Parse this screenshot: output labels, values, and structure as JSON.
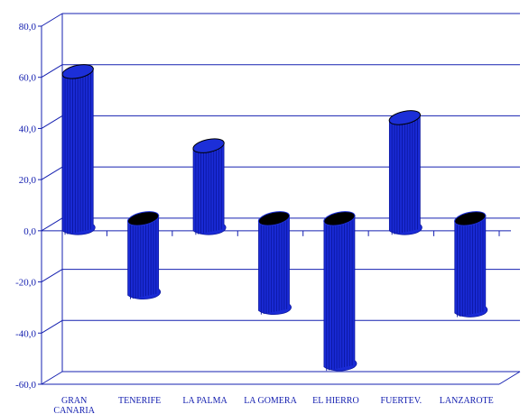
{
  "chart_data": {
    "type": "bar",
    "title": "",
    "xlabel": "",
    "ylabel": "",
    "ylim": [
      -60,
      80
    ],
    "yticks": [
      -60,
      -40,
      -20,
      0,
      20,
      40,
      60,
      80
    ],
    "ytick_labels": [
      "-60,0",
      "-40,0",
      "-20,0",
      "0,0",
      "20,0",
      "40,0",
      "60,0",
      "80,0"
    ],
    "categories": [
      "GRAN CANARIA",
      "TENERIFE",
      "LA PALMA",
      "LA GOMERA",
      "EL HIERRO",
      "FUERTEV.",
      "LANZAROTE"
    ],
    "category_lines": [
      [
        "GRAN",
        "CANARIA"
      ],
      [
        "TENERIFE"
      ],
      [
        "LA PALMA"
      ],
      [
        "LA GOMERA"
      ],
      [
        "EL HIERRO"
      ],
      [
        "FUERTEV."
      ],
      [
        "LANZAROTE"
      ]
    ],
    "values": [
      61,
      -28,
      32,
      -34,
      -56,
      43,
      -35
    ],
    "grid": true,
    "legend": "none",
    "style": "3d-cylinder",
    "colors": {
      "bar": "#1a2bd6",
      "bar_stripe": "#0a16a0",
      "bar_top": "#1c2fd8",
      "bar_bottom": "#000000",
      "axis": "#1520b0",
      "tick_label": "#1520b0"
    }
  }
}
